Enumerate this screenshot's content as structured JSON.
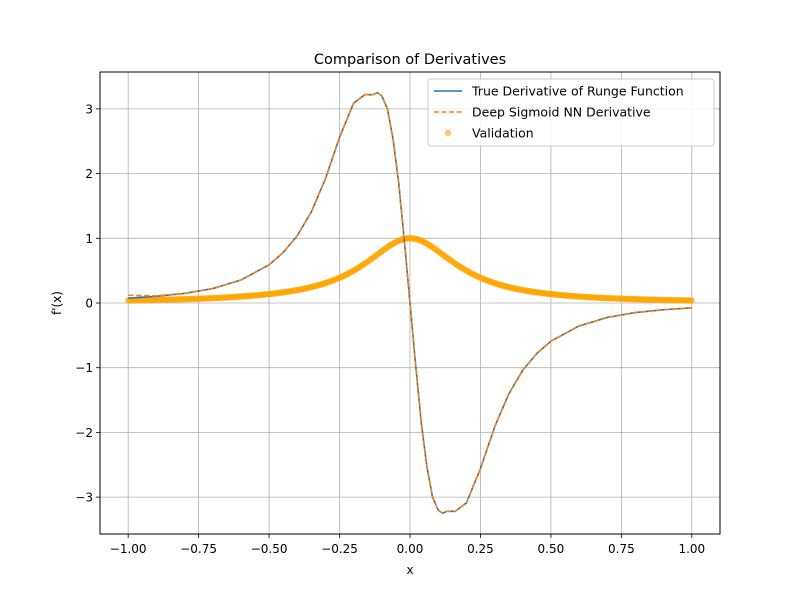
{
  "chart_data": {
    "type": "line",
    "title": "Comparison of Derivatives",
    "xlabel": "x",
    "ylabel": "f'(x)",
    "xlim": [
      -1.1,
      1.1
    ],
    "ylim": [
      -3.57,
      3.57
    ],
    "xticks": [
      -1.0,
      -0.75,
      -0.5,
      -0.25,
      0.0,
      0.25,
      0.5,
      0.75,
      1.0
    ],
    "xtick_labels": [
      "−1.00",
      "−0.75",
      "−0.50",
      "−0.25",
      "0.00",
      "0.25",
      "0.50",
      "0.75",
      "1.00"
    ],
    "yticks": [
      -3,
      -2,
      -1,
      0,
      1,
      2,
      3
    ],
    "ytick_labels": [
      "−3",
      "−2",
      "−1",
      "0",
      "1",
      "2",
      "3"
    ],
    "grid": true,
    "legend_position": "top-right",
    "series": [
      {
        "name": "True Derivative of Runge Function",
        "type": "line",
        "color": "#1f77b4",
        "style": "solid",
        "x": [
          -1.0,
          -0.9,
          -0.8,
          -0.7,
          -0.6,
          -0.5,
          -0.45,
          -0.4,
          -0.35,
          -0.3,
          -0.25,
          -0.2,
          -0.16,
          -0.13,
          -0.115,
          -0.1,
          -0.08,
          -0.06,
          -0.04,
          -0.02,
          0.0,
          0.02,
          0.04,
          0.06,
          0.08,
          0.1,
          0.115,
          0.13,
          0.16,
          0.2,
          0.25,
          0.3,
          0.35,
          0.4,
          0.45,
          0.5,
          0.6,
          0.7,
          0.8,
          0.9,
          1.0
        ],
        "y": [
          0.074,
          0.103,
          0.148,
          0.223,
          0.355,
          0.59,
          0.78,
          1.04,
          1.41,
          1.92,
          2.56,
          3.09,
          3.22,
          3.22,
          3.25,
          3.2,
          3.0,
          2.53,
          1.85,
          0.96,
          0.0,
          -0.96,
          -1.85,
          -2.53,
          -3.0,
          -3.2,
          -3.25,
          -3.22,
          -3.22,
          -3.09,
          -2.56,
          -1.92,
          -1.41,
          -1.04,
          -0.78,
          -0.59,
          -0.355,
          -0.223,
          -0.148,
          -0.103,
          -0.074
        ]
      },
      {
        "name": "Deep Sigmoid NN Derivative",
        "type": "line",
        "color": "#ff7f0e",
        "style": "dashed",
        "x": [
          -1.0,
          -0.9,
          -0.8,
          -0.7,
          -0.6,
          -0.5,
          -0.45,
          -0.4,
          -0.35,
          -0.3,
          -0.25,
          -0.2,
          -0.16,
          -0.13,
          -0.115,
          -0.1,
          -0.08,
          -0.06,
          -0.04,
          -0.02,
          0.0,
          0.02,
          0.04,
          0.06,
          0.08,
          0.1,
          0.115,
          0.13,
          0.16,
          0.2,
          0.25,
          0.3,
          0.35,
          0.4,
          0.45,
          0.5,
          0.6,
          0.7,
          0.8,
          0.9,
          1.0
        ],
        "y": [
          0.12,
          0.11,
          0.148,
          0.223,
          0.355,
          0.59,
          0.78,
          1.04,
          1.41,
          1.92,
          2.56,
          3.09,
          3.22,
          3.22,
          3.25,
          3.2,
          3.0,
          2.53,
          1.85,
          0.96,
          0.0,
          -0.96,
          -1.85,
          -2.53,
          -3.0,
          -3.2,
          -3.25,
          -3.22,
          -3.22,
          -3.09,
          -2.56,
          -1.92,
          -1.41,
          -1.04,
          -0.78,
          -0.59,
          -0.355,
          -0.223,
          -0.148,
          -0.103,
          -0.074
        ]
      },
      {
        "name": "Validation",
        "type": "scatter",
        "color": "#ffa500",
        "x_range": [
          -1.0,
          1.0
        ],
        "n_points": 400,
        "curve": "runge",
        "curve_coefficient": 25
      }
    ]
  }
}
